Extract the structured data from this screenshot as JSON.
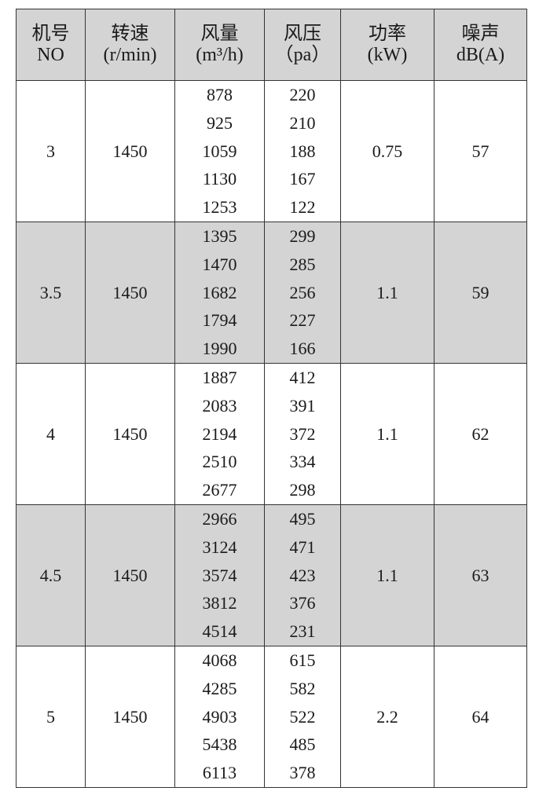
{
  "headers": [
    {
      "line1": "机号",
      "line2": "NO"
    },
    {
      "line1": "转速",
      "line2": "(r/min)"
    },
    {
      "line1": "风量",
      "line2": "(m³/h)"
    },
    {
      "line1": "风压",
      "line2": "（pa）"
    },
    {
      "line1": "功率",
      "line2": "(kW)"
    },
    {
      "line1": "噪声",
      "line2": "dB(A)"
    }
  ],
  "rows": [
    {
      "no": "3",
      "speed": "1450",
      "airflow": [
        "878",
        "925",
        "1059",
        "1130",
        "1253"
      ],
      "pressure": [
        "220",
        "210",
        "188",
        "167",
        "122"
      ],
      "power": "0.75",
      "noise": "57",
      "shaded": false
    },
    {
      "no": "3.5",
      "speed": "1450",
      "airflow": [
        "1395",
        "1470",
        "1682",
        "1794",
        "1990"
      ],
      "pressure": [
        "299",
        "285",
        "256",
        "227",
        "166"
      ],
      "power": "1.1",
      "noise": "59",
      "shaded": true
    },
    {
      "no": "4",
      "speed": "1450",
      "airflow": [
        "1887",
        "2083",
        "2194",
        "2510",
        "2677"
      ],
      "pressure": [
        "412",
        "391",
        "372",
        "334",
        "298"
      ],
      "power": "1.1",
      "noise": "62",
      "shaded": false
    },
    {
      "no": "4.5",
      "speed": "1450",
      "airflow": [
        "2966",
        "3124",
        "3574",
        "3812",
        "4514"
      ],
      "pressure": [
        "495",
        "471",
        "423",
        "376",
        "231"
      ],
      "power": "1.1",
      "noise": "63",
      "shaded": true
    },
    {
      "no": "5",
      "speed": "1450",
      "airflow": [
        "4068",
        "4285",
        "4903",
        "5438",
        "6113"
      ],
      "pressure": [
        "615",
        "582",
        "522",
        "485",
        "378"
      ],
      "power": "2.2",
      "noise": "64",
      "shaded": false
    }
  ],
  "colors": {
    "shade": "#d4d4d4",
    "border": "#333333"
  }
}
